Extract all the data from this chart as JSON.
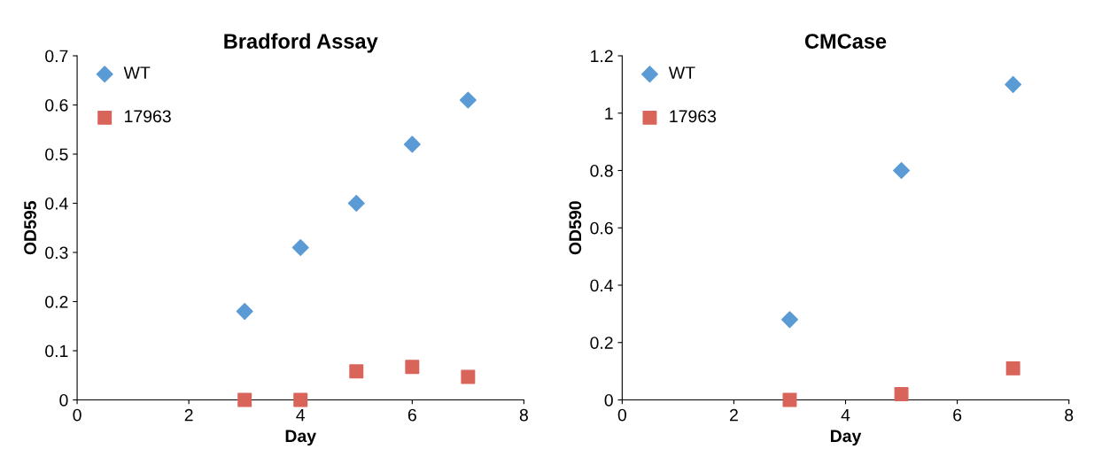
{
  "chart_data": [
    {
      "type": "scatter",
      "title": "Bradford Assay",
      "xlabel": "Day",
      "ylabel": "OD595",
      "xlim": [
        0,
        8
      ],
      "xticks": [
        0,
        2,
        4,
        6,
        8
      ],
      "ylim": [
        0,
        0.7
      ],
      "yticks": [
        0,
        0.1,
        0.2,
        0.3,
        0.4,
        0.5,
        0.6,
        0.7
      ],
      "grid": false,
      "legend": "top left",
      "series": [
        {
          "name": "WT",
          "color": "#5b9bd5",
          "marker": "diamond",
          "x": [
            3,
            4,
            5,
            6,
            7
          ],
          "values": [
            0.18,
            0.31,
            0.4,
            0.52,
            0.61
          ]
        },
        {
          "name": "17963",
          "color": "#d9645a",
          "marker": "square",
          "x": [
            3,
            4,
            5,
            6,
            7
          ],
          "values": [
            0.0,
            0.0,
            0.058,
            0.067,
            0.047
          ]
        }
      ]
    },
    {
      "type": "scatter",
      "title": "CMCase",
      "xlabel": "Day",
      "ylabel": "OD590",
      "xlim": [
        0,
        8
      ],
      "xticks": [
        0,
        2,
        4,
        6,
        8
      ],
      "ylim": [
        0,
        1.2
      ],
      "yticks": [
        0,
        0.2,
        0.4,
        0.6,
        0.8,
        1,
        1.2
      ],
      "grid": false,
      "legend": "top left",
      "series": [
        {
          "name": "WT",
          "color": "#5b9bd5",
          "marker": "diamond",
          "x": [
            3,
            5,
            7
          ],
          "values": [
            0.28,
            0.8,
            1.1
          ]
        },
        {
          "name": "17963",
          "color": "#d9645a",
          "marker": "square",
          "x": [
            3,
            5,
            7
          ],
          "values": [
            0.0,
            0.02,
            0.11
          ]
        }
      ]
    }
  ]
}
